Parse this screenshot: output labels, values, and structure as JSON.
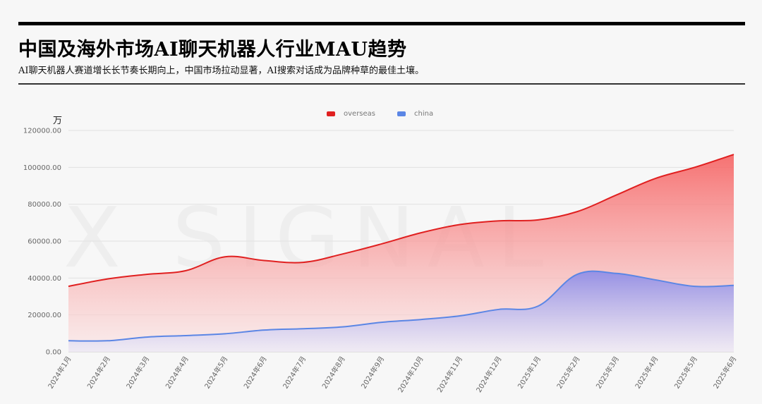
{
  "header": {
    "title": "中国及海外市场AI聊天机器人行业MAU趋势",
    "subtitle": "AI聊天机器人赛道增长长节奏长期向上，中国市场拉动显著，AI搜索对话成为品牌种草的最佳土壤。"
  },
  "watermark": "X SIGNAL",
  "chart_data": {
    "type": "area",
    "ylabel": "万",
    "ylim": [
      0,
      120000
    ],
    "yticks": [
      "0.00",
      "20000.00",
      "40000.00",
      "60000.00",
      "80000.00",
      "100000.00",
      "120000.00"
    ],
    "categories": [
      "2024年1月",
      "2024年2月",
      "2024年3月",
      "2024年4月",
      "2024年5月",
      "2024年6月",
      "2024年7月",
      "2024年8月",
      "2024年9月",
      "2024年10月",
      "2024年11月",
      "2024年12月",
      "2025年1月",
      "2025年2月",
      "2025年3月",
      "2025年4月",
      "2025年5月",
      "2025年6月"
    ],
    "legend_position": "top-center",
    "grid": true,
    "series": [
      {
        "name": "overseas",
        "color": "#e02020",
        "values": [
          35500,
          39500,
          42000,
          44000,
          51500,
          49500,
          48500,
          53000,
          58500,
          64500,
          69000,
          71000,
          71500,
          76000,
          85000,
          94000,
          100000,
          107000
        ]
      },
      {
        "name": "china",
        "color": "#5b86e5",
        "values": [
          6000,
          6000,
          8000,
          8800,
          9800,
          11800,
          12500,
          13500,
          16000,
          17500,
          19500,
          23000,
          24800,
          42000,
          42500,
          39000,
          35500,
          36000
        ]
      }
    ]
  }
}
